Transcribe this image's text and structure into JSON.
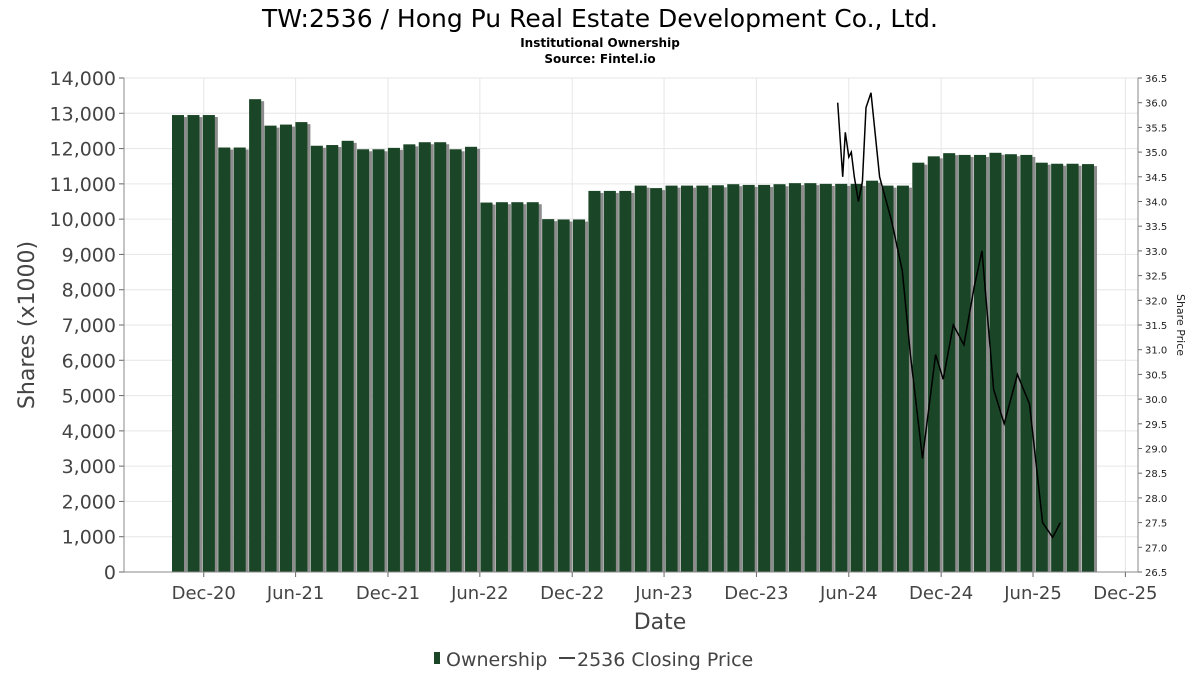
{
  "chart_data": {
    "type": "bar",
    "title": "TW:2536 / Hong Pu Real Estate Development Co., Ltd.",
    "subtitle": "Institutional Ownership",
    "source": "Source: Fintel.io",
    "xlabel": "Date",
    "ylabel": "Shares (x1000)",
    "y2label": "Share Price",
    "ylim": [
      0,
      14000
    ],
    "y2lim": [
      26.5,
      36.5
    ],
    "yticks": [
      "0",
      "1,000",
      "2,000",
      "3,000",
      "4,000",
      "5,000",
      "6,000",
      "7,000",
      "8,000",
      "9,000",
      "10,000",
      "11,000",
      "12,000",
      "13,000",
      "14,000"
    ],
    "y2ticks": [
      "26.5",
      "27.0",
      "27.5",
      "28.0",
      "28.5",
      "29.0",
      "29.5",
      "30.0",
      "30.5",
      "31.0",
      "31.5",
      "32.0",
      "32.5",
      "33.0",
      "33.5",
      "34.0",
      "34.5",
      "35.0",
      "35.5",
      "36.0",
      "36.5"
    ],
    "xticks": [
      "Dec-20",
      "Jun-21",
      "Dec-21",
      "Jun-22",
      "Dec-22",
      "Jun-23",
      "Dec-23",
      "Jun-24",
      "Dec-24",
      "Jun-25",
      "Dec-25"
    ],
    "colors": {
      "bar": "#1a4526",
      "bar_shadow": "#8c8c8c",
      "line": "#000000",
      "grid": "#e6e6e6"
    },
    "grid": true,
    "legend_position": "bottom",
    "series": [
      {
        "name": "Ownership",
        "type": "bar",
        "values": [
          12950,
          12950,
          12950,
          12030,
          12030,
          13400,
          12650,
          12680,
          12750,
          12080,
          12100,
          12220,
          11980,
          11980,
          12020,
          12120,
          12180,
          12180,
          11980,
          12050,
          10470,
          10480,
          10480,
          10480,
          10000,
          9990,
          9990,
          10800,
          10800,
          10800,
          10950,
          10880,
          10950,
          10950,
          10950,
          10960,
          10990,
          10970,
          10970,
          10990,
          11020,
          11020,
          11000,
          11000,
          11000,
          11090,
          10950,
          10950,
          11600,
          11780,
          11870,
          11820,
          11820,
          11880,
          11840,
          11820,
          11600,
          11570,
          11570,
          11560
        ]
      },
      {
        "name": "2536 Closing Price",
        "type": "line",
        "points": [
          {
            "date": "2024-05-10",
            "price": 36.0
          },
          {
            "date": "2024-05-20",
            "price": 34.5
          },
          {
            "date": "2024-05-25",
            "price": 35.4
          },
          {
            "date": "2024-06-01",
            "price": 34.9
          },
          {
            "date": "2024-06-06",
            "price": 35.0
          },
          {
            "date": "2024-06-12",
            "price": 34.5
          },
          {
            "date": "2024-06-20",
            "price": 34.0
          },
          {
            "date": "2024-06-28",
            "price": 34.4
          },
          {
            "date": "2024-07-05",
            "price": 35.9
          },
          {
            "date": "2024-07-15",
            "price": 36.2
          },
          {
            "date": "2024-08-01",
            "price": 34.5
          },
          {
            "date": "2024-08-25",
            "price": 33.6
          },
          {
            "date": "2024-09-15",
            "price": 32.6
          },
          {
            "date": "2024-10-01",
            "price": 30.9
          },
          {
            "date": "2024-10-25",
            "price": 28.8
          },
          {
            "date": "2024-11-20",
            "price": 30.9
          },
          {
            "date": "2024-12-05",
            "price": 30.4
          },
          {
            "date": "2024-12-25",
            "price": 31.5
          },
          {
            "date": "2025-01-15",
            "price": 31.1
          },
          {
            "date": "2025-02-05",
            "price": 32.3
          },
          {
            "date": "2025-02-20",
            "price": 33.0
          },
          {
            "date": "2025-03-15",
            "price": 30.2
          },
          {
            "date": "2025-04-05",
            "price": 29.5
          },
          {
            "date": "2025-05-01",
            "price": 30.5
          },
          {
            "date": "2025-05-25",
            "price": 29.9
          },
          {
            "date": "2025-06-20",
            "price": 27.5
          },
          {
            "date": "2025-07-10",
            "price": 27.2
          },
          {
            "date": "2025-07-25",
            "price": 27.5
          }
        ]
      }
    ]
  }
}
